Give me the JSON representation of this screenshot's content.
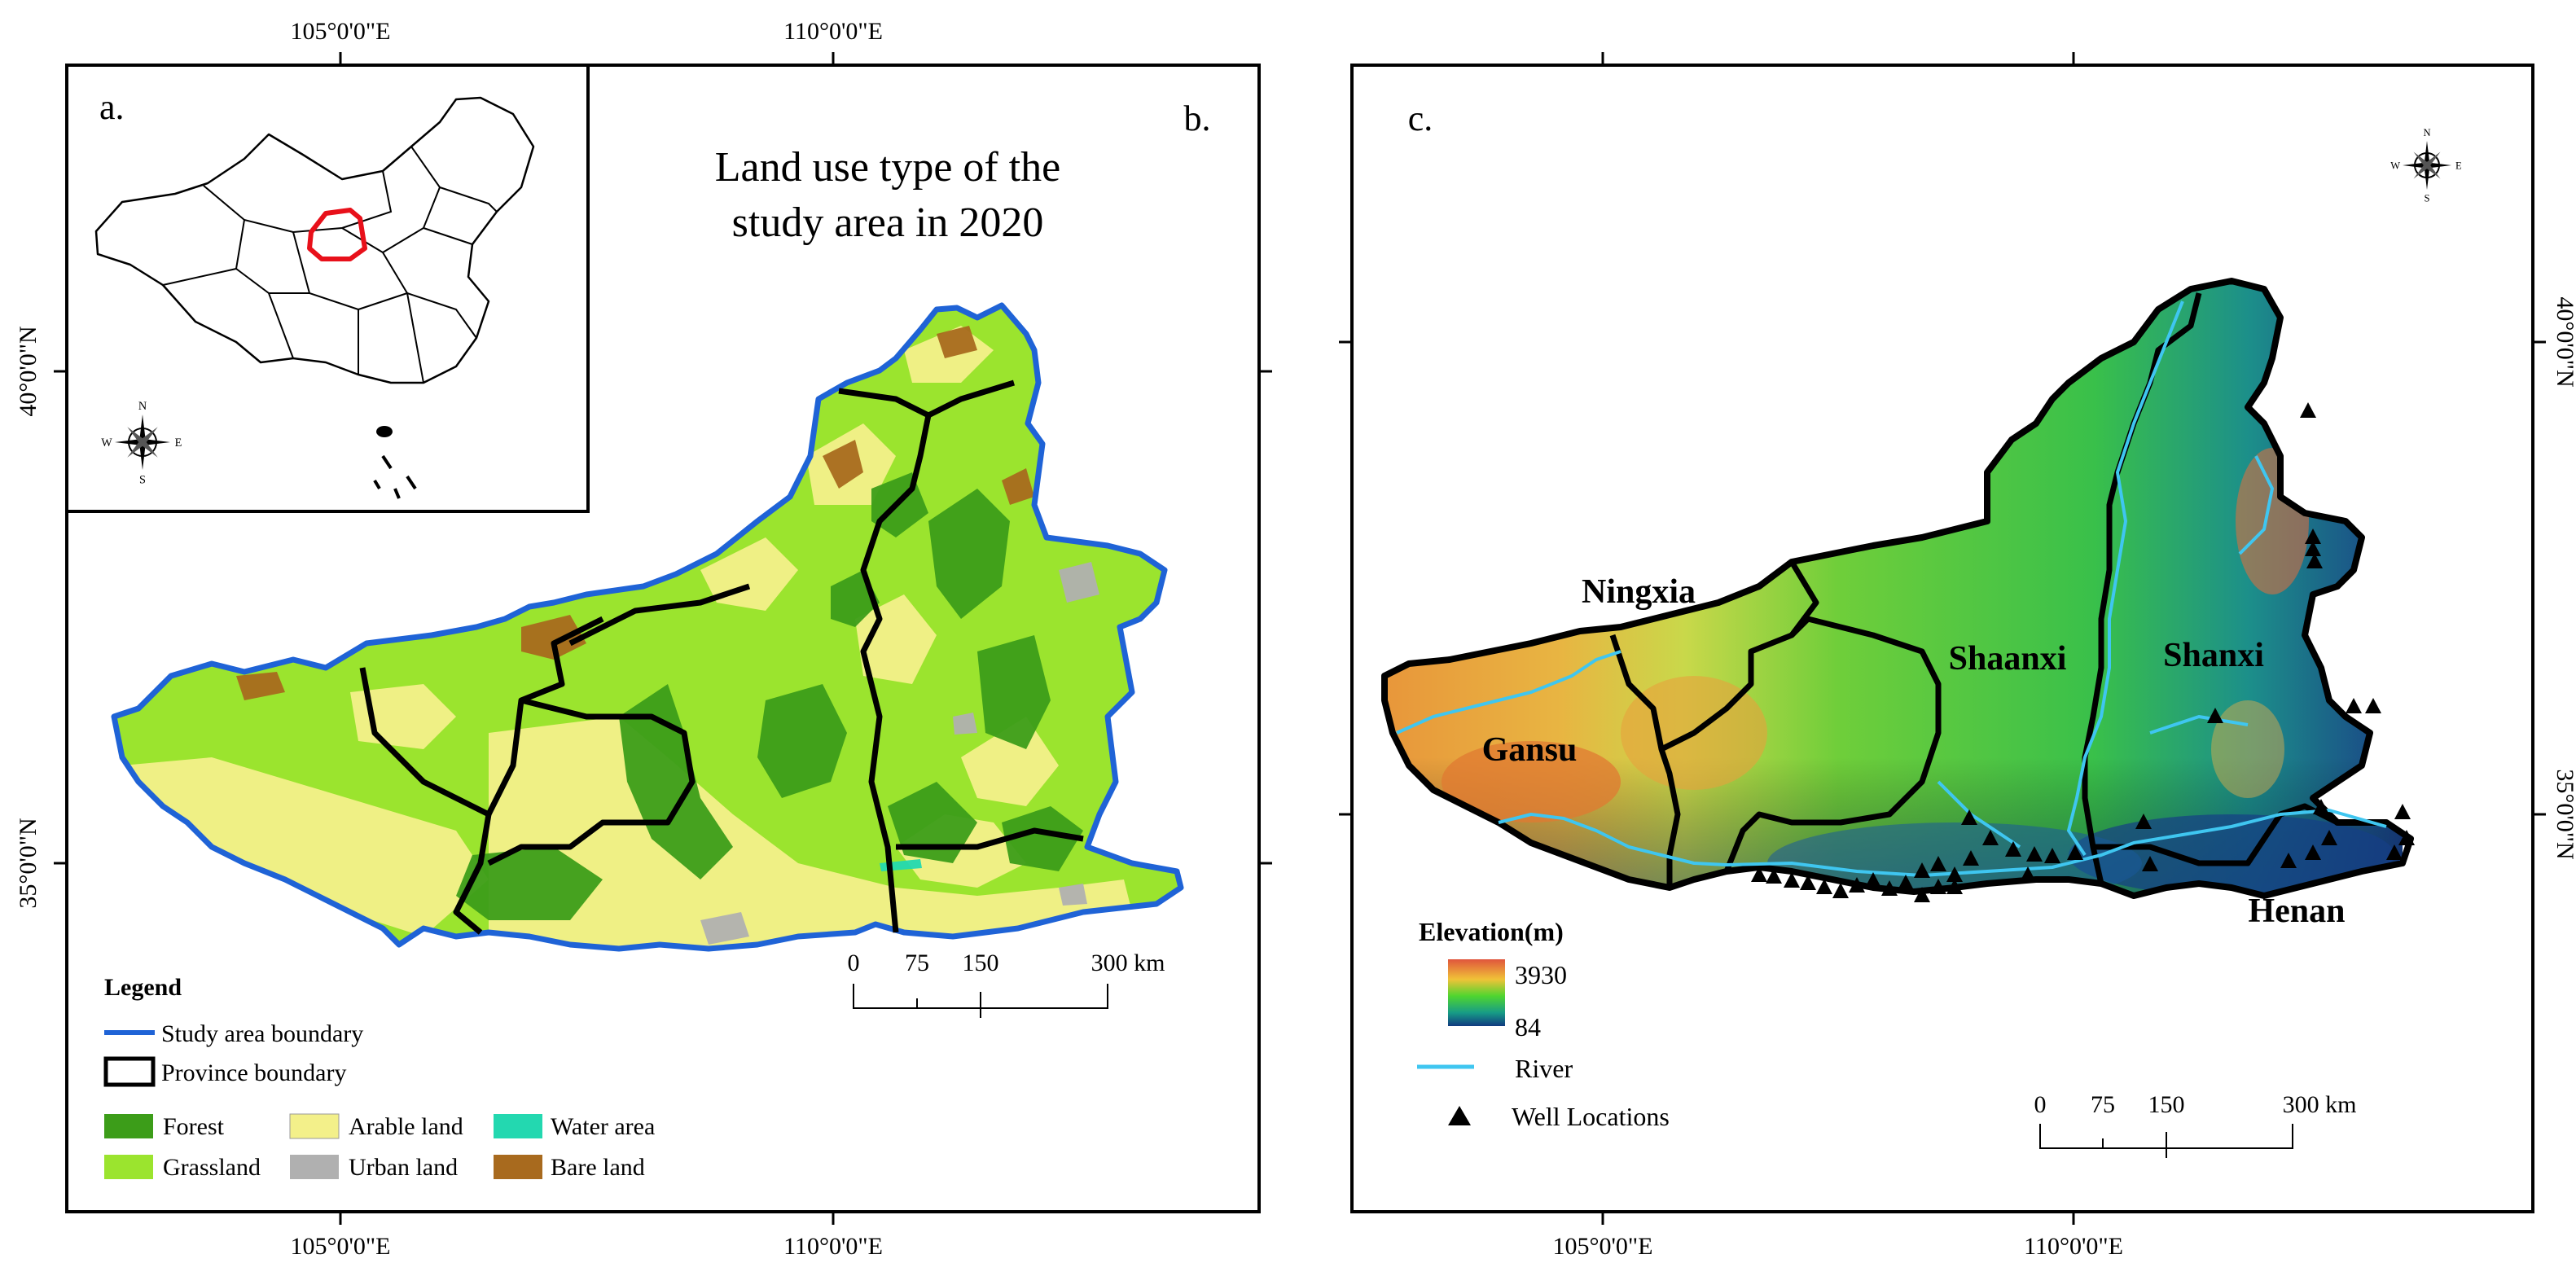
{
  "panel_a": {
    "letter": "a."
  },
  "panel_b": {
    "letter": "b.",
    "title_line1": "Land use type of the",
    "title_line2": "study area in 2020",
    "top_ticks": [
      "105°0'0\"E",
      "110°0'0\"E"
    ],
    "bottom_ticks": [
      "105°0'0\"E",
      "110°0'0\"E"
    ],
    "left_ticks": [
      "40°0'0\"N",
      "35°0'0\"N"
    ],
    "legend": {
      "title": "Legend",
      "boundaries": [
        {
          "label": "Study area boundary",
          "color": "#1f63d6"
        },
        {
          "label": "Province boundary",
          "color": "#000000"
        }
      ],
      "classes": [
        {
          "label": "Forest",
          "color": "#3c9d19"
        },
        {
          "label": "Arable land",
          "color": "#f3f08a"
        },
        {
          "label": "Water area",
          "color": "#23d8b0"
        },
        {
          "label": "Grassland",
          "color": "#9be42e"
        },
        {
          "label": "Urban land",
          "color": "#b0b0b0"
        },
        {
          "label": "Bare land",
          "color": "#a86a1e"
        }
      ]
    },
    "scale": {
      "ticks": [
        "0",
        "75",
        "150",
        "300 km"
      ]
    }
  },
  "panel_c": {
    "letter": "c.",
    "bottom_ticks": [
      "105°0'0\"E",
      "110°0'0\"E"
    ],
    "right_ticks": [
      "40°0'0\"N",
      "35°0'0\"N"
    ],
    "provinces": [
      "Ningxia",
      "Shaanxi",
      "Shanxi",
      "Gansu",
      "Henan"
    ],
    "elevation": {
      "title": "Elevation(m)",
      "max": "3930",
      "min": "84"
    },
    "legend_items": {
      "river": "River",
      "wells": "Well Locations"
    },
    "river_color": "#3fc6f0",
    "scale": {
      "ticks": [
        "0",
        "75",
        "150",
        "300 km"
      ]
    }
  },
  "compass": {
    "n": "N",
    "s": "S",
    "e": "E",
    "w": "W"
  }
}
